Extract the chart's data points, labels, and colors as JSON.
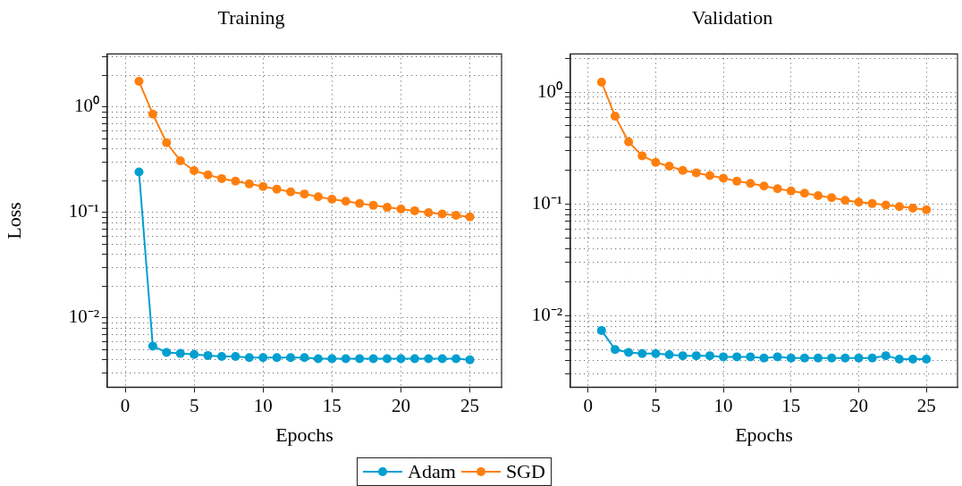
{
  "chart_data": [
    {
      "type": "line",
      "title": "Training",
      "xlabel": "Epochs",
      "ylabel": "Loss",
      "log": "y",
      "grid": true,
      "marker": "circle",
      "line_style": "solid",
      "legend": "bottom",
      "x": [
        1,
        2,
        3,
        4,
        5,
        6,
        7,
        8,
        9,
        10,
        11,
        12,
        13,
        14,
        15,
        16,
        17,
        18,
        19,
        20,
        21,
        22,
        23,
        24,
        25
      ],
      "xlim": [
        -1.3,
        27.3
      ],
      "xticks": [
        0,
        5,
        10,
        15,
        20,
        25
      ],
      "ylim": [
        0.0022,
        3.2
      ],
      "yticks": [
        {
          "value": 0.003,
          "label": null
        },
        {
          "value": 0.004,
          "label": null
        },
        {
          "value": 0.005,
          "label": null
        },
        {
          "value": 0.006,
          "label": null
        },
        {
          "value": 0.007,
          "label": null
        },
        {
          "value": 0.008,
          "label": null
        },
        {
          "value": 0.009,
          "label": null
        },
        {
          "value": 0.01,
          "label": "10⁻²"
        },
        {
          "value": 0.02,
          "label": null
        },
        {
          "value": 0.03,
          "label": null
        },
        {
          "value": 0.04,
          "label": null
        },
        {
          "value": 0.05,
          "label": null
        },
        {
          "value": 0.06,
          "label": null
        },
        {
          "value": 0.07,
          "label": null
        },
        {
          "value": 0.08,
          "label": null
        },
        {
          "value": 0.09,
          "label": null
        },
        {
          "value": 0.1,
          "label": "10⁻¹"
        },
        {
          "value": 0.2,
          "label": null
        },
        {
          "value": 0.3,
          "label": null
        },
        {
          "value": 0.4,
          "label": null
        },
        {
          "value": 0.5,
          "label": null
        },
        {
          "value": 0.6,
          "label": null
        },
        {
          "value": 0.7,
          "label": null
        },
        {
          "value": 0.8,
          "label": null
        },
        {
          "value": 0.9,
          "label": null
        },
        {
          "value": 1,
          "label": "10⁰"
        },
        {
          "value": 2,
          "label": null
        },
        {
          "value": 3,
          "label": null
        }
      ],
      "series": [
        {
          "name": "Adam",
          "color": "#009fd0",
          "values": [
            0.243,
            0.0054,
            0.0047,
            0.0046,
            0.0045,
            0.0044,
            0.0043,
            0.0043,
            0.0042,
            0.0042,
            0.0042,
            0.0042,
            0.0042,
            0.0041,
            0.0041,
            0.0041,
            0.0041,
            0.0041,
            0.0041,
            0.0041,
            0.0041,
            0.0041,
            0.0041,
            0.0041,
            0.004
          ]
        },
        {
          "name": "SGD",
          "color": "#ff7f0e",
          "values": [
            1.76,
            0.86,
            0.46,
            0.31,
            0.25,
            0.228,
            0.21,
            0.199,
            0.187,
            0.177,
            0.167,
            0.157,
            0.15,
            0.141,
            0.134,
            0.128,
            0.122,
            0.117,
            0.112,
            0.108,
            0.104,
            0.1,
            0.097,
            0.094,
            0.091
          ]
        }
      ]
    },
    {
      "type": "line",
      "title": "Validation",
      "xlabel": "Epochs",
      "log": "y",
      "grid": true,
      "marker": "circle",
      "line_style": "solid",
      "x": [
        1,
        2,
        3,
        4,
        5,
        6,
        7,
        8,
        9,
        10,
        11,
        12,
        13,
        14,
        15,
        16,
        17,
        18,
        19,
        20,
        21,
        22,
        23,
        24,
        25
      ],
      "xlim": [
        -1.3,
        27.3
      ],
      "xticks": [
        0,
        5,
        10,
        15,
        20,
        25
      ],
      "ylim": [
        0.0023,
        2.2
      ],
      "yticks": [
        {
          "value": 0.003,
          "label": null
        },
        {
          "value": 0.004,
          "label": null
        },
        {
          "value": 0.005,
          "label": null
        },
        {
          "value": 0.006,
          "label": null
        },
        {
          "value": 0.007,
          "label": null
        },
        {
          "value": 0.008,
          "label": null
        },
        {
          "value": 0.009,
          "label": null
        },
        {
          "value": 0.01,
          "label": "10⁻²"
        },
        {
          "value": 0.02,
          "label": null
        },
        {
          "value": 0.03,
          "label": null
        },
        {
          "value": 0.04,
          "label": null
        },
        {
          "value": 0.05,
          "label": null
        },
        {
          "value": 0.06,
          "label": null
        },
        {
          "value": 0.07,
          "label": null
        },
        {
          "value": 0.08,
          "label": null
        },
        {
          "value": 0.09,
          "label": null
        },
        {
          "value": 0.1,
          "label": "10⁻¹"
        },
        {
          "value": 0.2,
          "label": null
        },
        {
          "value": 0.3,
          "label": null
        },
        {
          "value": 0.4,
          "label": null
        },
        {
          "value": 0.5,
          "label": null
        },
        {
          "value": 0.6,
          "label": null
        },
        {
          "value": 0.7,
          "label": null
        },
        {
          "value": 0.8,
          "label": null
        },
        {
          "value": 0.9,
          "label": null
        },
        {
          "value": 1,
          "label": "10⁰"
        },
        {
          "value": 2,
          "label": null
        }
      ],
      "series": [
        {
          "name": "Adam",
          "color": "#009fd0",
          "values": [
            0.0074,
            0.005,
            0.0047,
            0.0046,
            0.0046,
            0.0045,
            0.0044,
            0.0044,
            0.0044,
            0.0043,
            0.0043,
            0.0043,
            0.0042,
            0.0043,
            0.0042,
            0.0042,
            0.0042,
            0.0042,
            0.0042,
            0.0042,
            0.0042,
            0.0044,
            0.0041,
            0.0041,
            0.0041
          ]
        },
        {
          "name": "SGD",
          "color": "#ff7f0e",
          "values": [
            1.23,
            0.61,
            0.36,
            0.27,
            0.236,
            0.218,
            0.2,
            0.19,
            0.18,
            0.17,
            0.16,
            0.153,
            0.145,
            0.137,
            0.131,
            0.125,
            0.119,
            0.114,
            0.108,
            0.104,
            0.101,
            0.098,
            0.095,
            0.092,
            0.089
          ]
        }
      ]
    }
  ]
}
